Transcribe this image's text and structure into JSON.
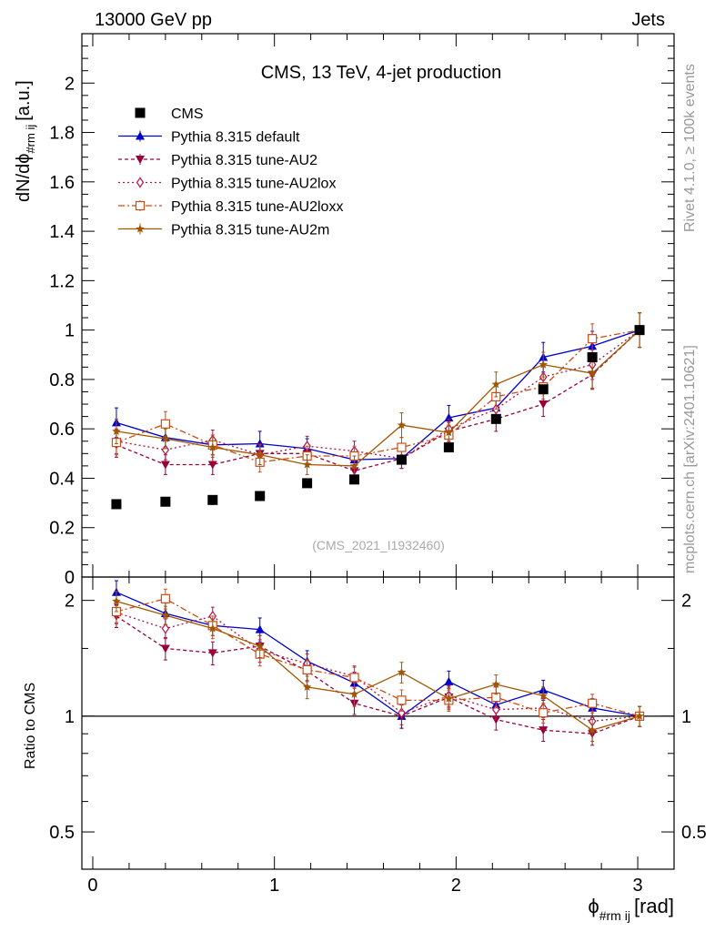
{
  "header": {
    "left": "13000 GeV pp",
    "right": "Jets"
  },
  "side": {
    "rivet": "Rivet 4.1.0, ≥ 100k events",
    "mcplots": "mcplots.cern.ch [arXiv:2401.10621]"
  },
  "chart_data": {
    "type": "scatter",
    "title": "CMS, 13 TeV, 4-jet production",
    "analysis_label": "(CMS_2021_I1932460)",
    "xlabel_main": "ϕ",
    "xlabel_sub": "#rm ij",
    "xlabel_unit": "[rad]",
    "ylabel_main": "dN/dϕ",
    "ylabel_sub": "#rm ij",
    "ylabel_unit": "[a.u.]",
    "ratio_ylabel": "Ratio to CMS",
    "xlim": [
      -0.06,
      3.2
    ],
    "ylim": [
      0,
      2.2
    ],
    "ratio_ylim": [
      0.4,
      2.3
    ],
    "x_ticks": [
      0,
      1,
      2,
      3
    ],
    "x_tick_labels": [
      "0",
      "1",
      "2",
      "3"
    ],
    "y_ticks": [
      0,
      0.2,
      0.4,
      0.6,
      0.8,
      1,
      1.2,
      1.4,
      1.6,
      1.8,
      2
    ],
    "y_tick_labels": [
      "0",
      "0.2",
      "0.4",
      "0.6",
      "0.8",
      "1",
      "1.2",
      "1.4",
      "1.6",
      "1.8",
      "2"
    ],
    "ratio_y_ticks": [
      0.5,
      1,
      2
    ],
    "ratio_y_tick_labels": [
      "0.5",
      "1",
      "2"
    ],
    "ratio_y_right_labels": [
      "0.5",
      "1",
      "2"
    ],
    "x": [
      0.13,
      0.4,
      0.66,
      0.92,
      1.18,
      1.44,
      1.7,
      1.96,
      2.22,
      2.48,
      2.75,
      3.01
    ],
    "data": {
      "name": "CMS",
      "color": "#000000",
      "values": [
        0.295,
        0.305,
        0.312,
        0.328,
        0.38,
        0.395,
        0.475,
        0.525,
        0.64,
        0.76,
        0.89,
        1.0
      ]
    },
    "series": [
      {
        "name": "Pythia 8.315 default",
        "color": "#0000cc",
        "marker": "triangle-up",
        "dash": "",
        "values": [
          0.625,
          0.565,
          0.535,
          0.54,
          0.52,
          0.475,
          0.48,
          0.645,
          0.685,
          0.89,
          0.935,
          1.0
        ],
        "errors": [
          0.06,
          0.04,
          0.04,
          0.05,
          0.04,
          0.04,
          0.04,
          0.05,
          0.05,
          0.06,
          0.06,
          0.07
        ],
        "ratio": [
          2.1,
          1.85,
          1.72,
          1.68,
          1.39,
          1.22,
          1.0,
          1.23,
          1.07,
          1.17,
          1.05,
          1.0
        ],
        "ratio_errors": [
          0.15,
          0.12,
          0.1,
          0.12,
          0.09,
          0.08,
          0.07,
          0.08,
          0.07,
          0.07,
          0.06,
          0.06
        ]
      },
      {
        "name": "Pythia 8.315 tune-AU2",
        "color": "#99003b",
        "marker": "triangle-down",
        "dash": "4,3",
        "values": [
          0.535,
          0.455,
          0.455,
          0.5,
          0.5,
          0.43,
          0.48,
          0.59,
          0.64,
          0.7,
          0.82,
          1.0
        ],
        "errors": [
          0.05,
          0.04,
          0.04,
          0.04,
          0.04,
          0.04,
          0.04,
          0.04,
          0.05,
          0.05,
          0.06,
          0.07
        ],
        "ratio": [
          1.82,
          1.5,
          1.46,
          1.52,
          1.31,
          1.08,
          1.0,
          1.12,
          0.98,
          0.92,
          0.9,
          1.0
        ],
        "ratio_errors": [
          0.12,
          0.1,
          0.1,
          0.1,
          0.08,
          0.07,
          0.07,
          0.07,
          0.06,
          0.06,
          0.06,
          0.06
        ]
      },
      {
        "name": "Pythia 8.315 tune-AU2lox",
        "color": "#b2134a",
        "marker": "diamond-open",
        "dash": "2,3",
        "values": [
          0.55,
          0.515,
          0.555,
          0.495,
          0.53,
          0.51,
          0.48,
          0.6,
          0.68,
          0.81,
          0.86,
          1.0
        ],
        "errors": [
          0.05,
          0.04,
          0.04,
          0.04,
          0.04,
          0.04,
          0.04,
          0.04,
          0.05,
          0.05,
          0.06,
          0.07
        ],
        "ratio": [
          1.86,
          1.69,
          1.82,
          1.48,
          1.37,
          1.27,
          1.02,
          1.13,
          1.04,
          1.05,
          0.97,
          1.0
        ],
        "ratio_errors": [
          0.12,
          0.1,
          0.1,
          0.1,
          0.08,
          0.08,
          0.07,
          0.07,
          0.06,
          0.06,
          0.06,
          0.06
        ]
      },
      {
        "name": "Pythia 8.315 tune-AU2loxx",
        "color": "#cc4c14",
        "marker": "square-open",
        "dash": "7,3,2,3",
        "values": [
          0.545,
          0.62,
          0.535,
          0.465,
          0.49,
          0.49,
          0.525,
          0.575,
          0.73,
          0.77,
          0.965,
          1.0
        ],
        "errors": [
          0.05,
          0.05,
          0.04,
          0.04,
          0.04,
          0.04,
          0.04,
          0.04,
          0.05,
          0.05,
          0.06,
          0.07
        ],
        "ratio": [
          1.87,
          2.02,
          1.72,
          1.45,
          1.32,
          1.26,
          1.1,
          1.1,
          1.12,
          1.02,
          1.08,
          1.0
        ],
        "ratio_errors": [
          0.12,
          0.12,
          0.1,
          0.1,
          0.08,
          0.08,
          0.07,
          0.07,
          0.07,
          0.06,
          0.06,
          0.06
        ]
      },
      {
        "name": "Pythia 8.315 tune-AU2m",
        "color": "#a35600",
        "marker": "star",
        "dash": "",
        "values": [
          0.59,
          0.56,
          0.525,
          0.495,
          0.455,
          0.45,
          0.615,
          0.585,
          0.78,
          0.86,
          0.825,
          1.0
        ],
        "errors": [
          0.05,
          0.04,
          0.04,
          0.04,
          0.04,
          0.04,
          0.05,
          0.04,
          0.05,
          0.05,
          0.06,
          0.07
        ],
        "ratio": [
          1.99,
          1.83,
          1.69,
          1.52,
          1.19,
          1.14,
          1.3,
          1.11,
          1.21,
          1.13,
          0.92,
          1.0
        ],
        "ratio_errors": [
          0.12,
          0.1,
          0.1,
          0.1,
          0.08,
          0.08,
          0.08,
          0.07,
          0.07,
          0.06,
          0.06,
          0.06
        ]
      }
    ]
  }
}
